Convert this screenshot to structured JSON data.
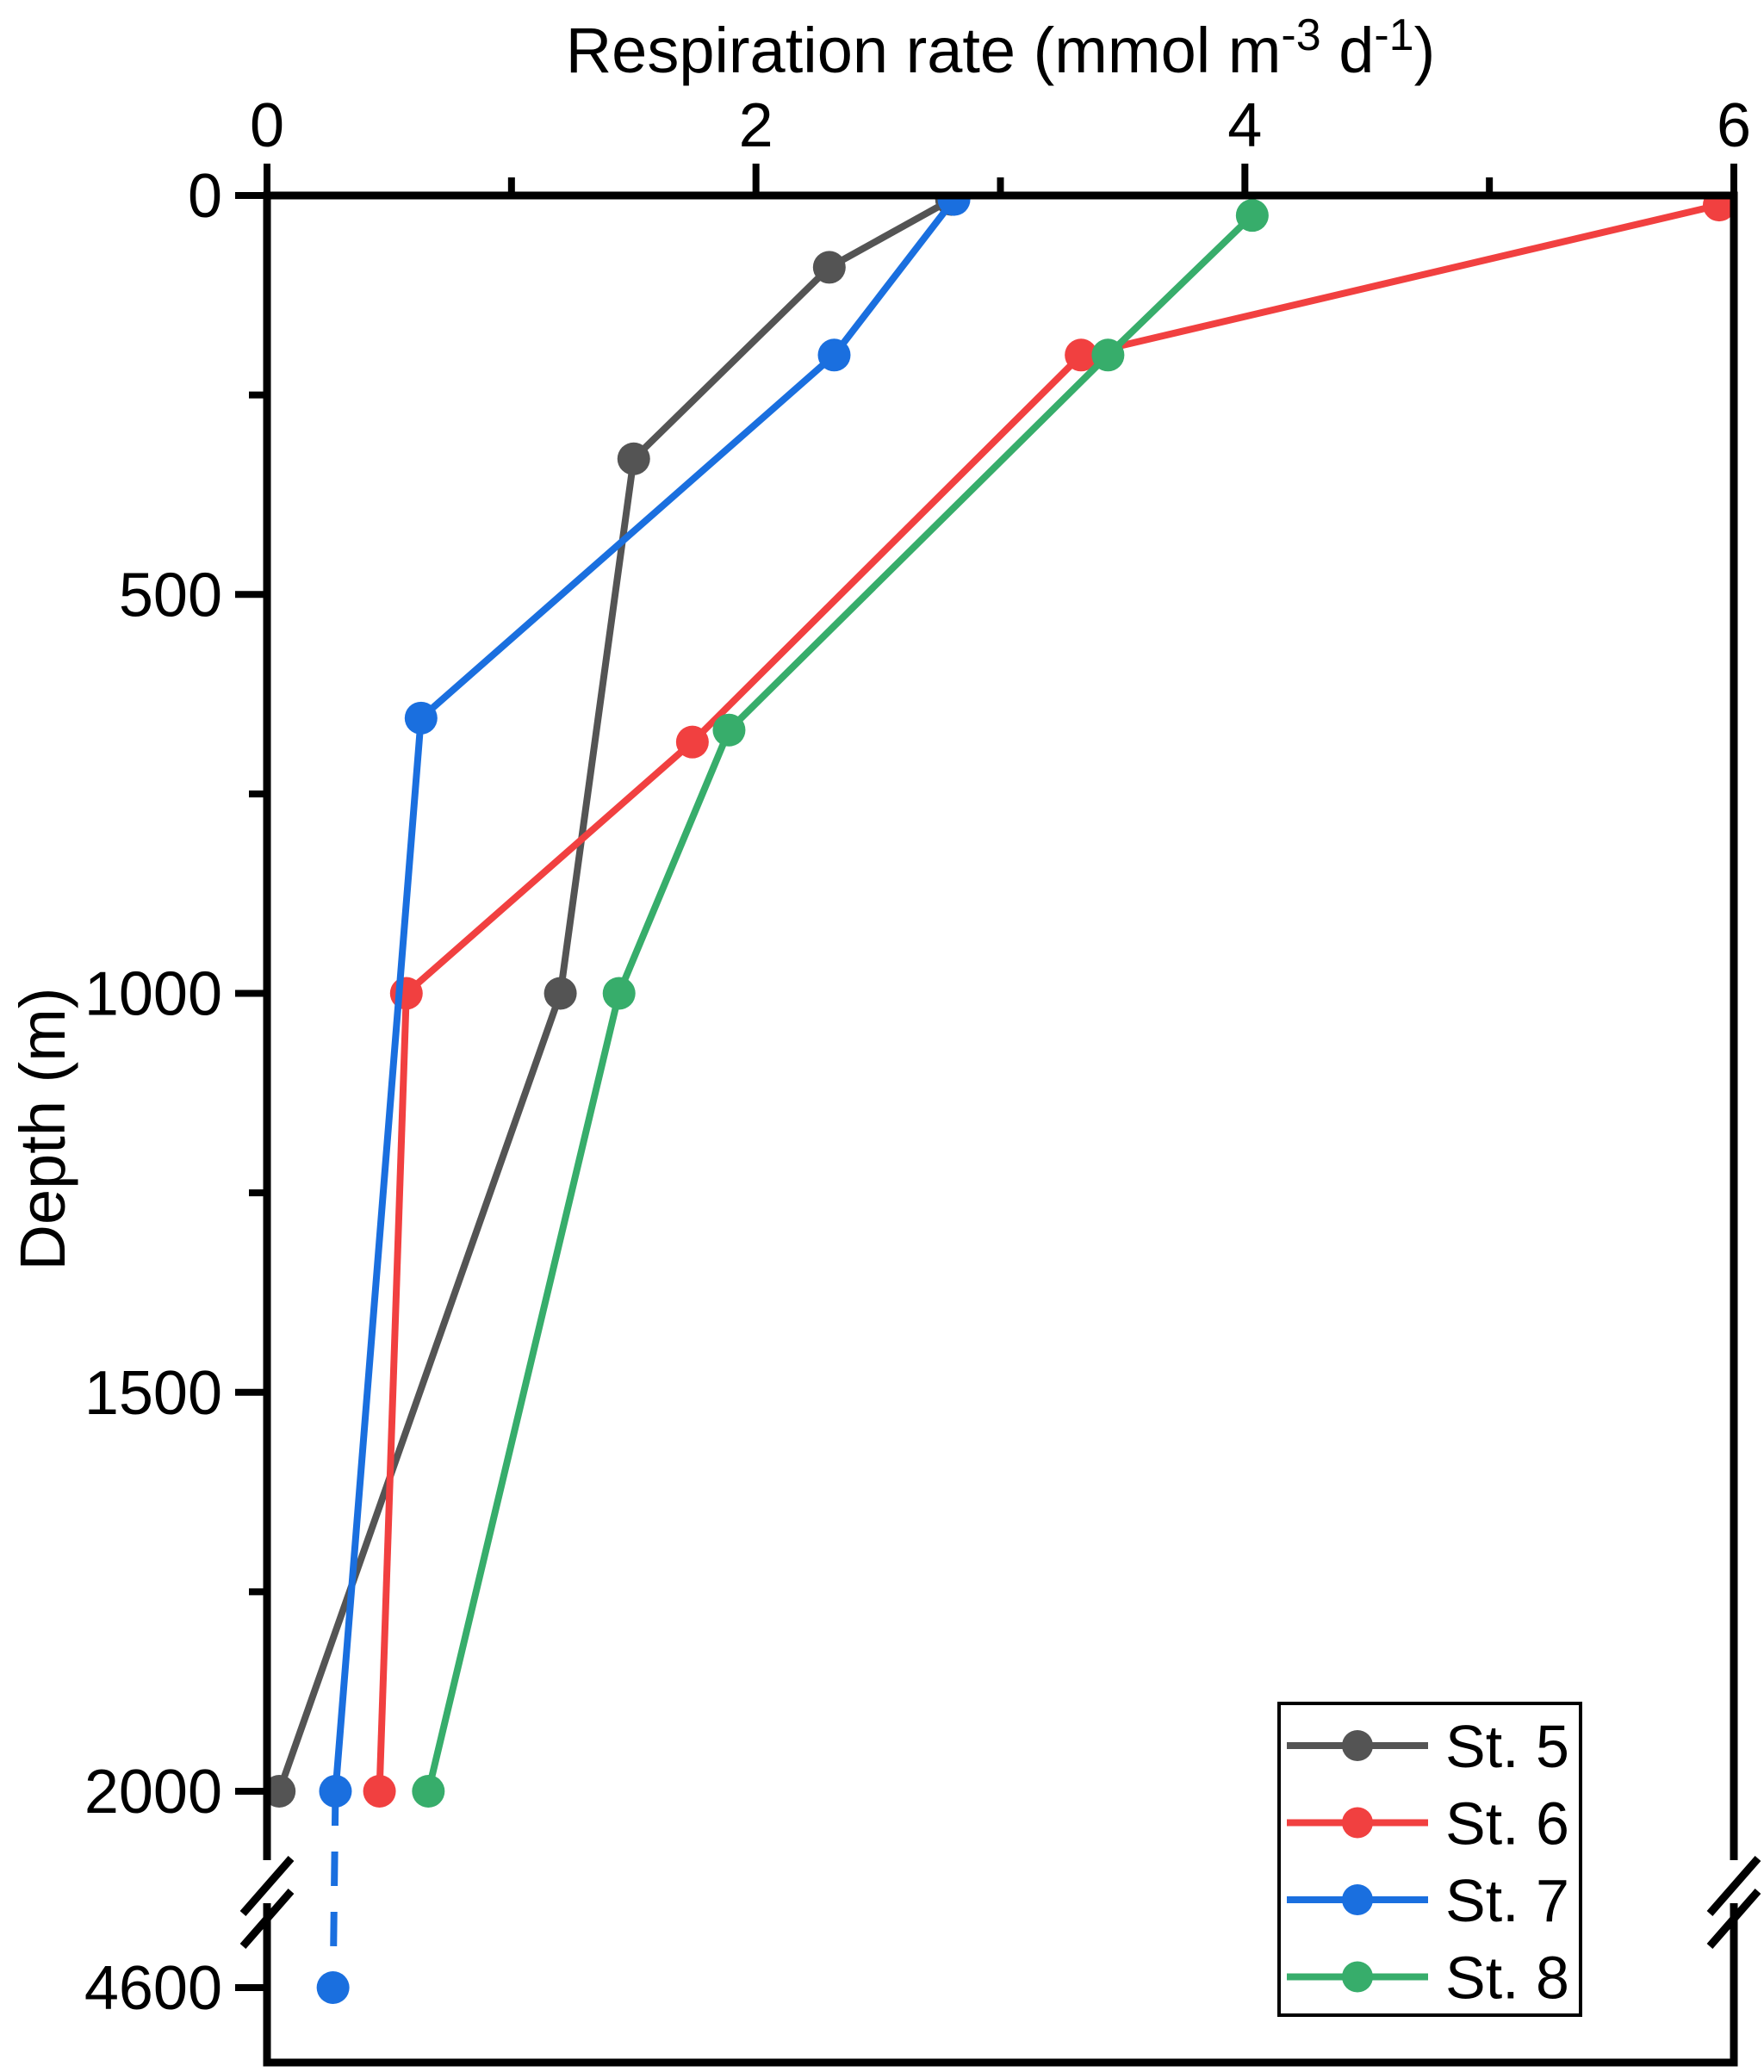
{
  "chart_data": {
    "type": "line",
    "title": "",
    "xlabel": "Respiration rate (mmol m⁻³ d⁻¹)",
    "xlabel_parts": [
      {
        "t": "Respiration rate (mmol m"
      },
      {
        "t": "-3",
        "sup": true
      },
      {
        "t": " d",
        "sup": false
      },
      {
        "t": "-1",
        "sup": true
      },
      {
        "t": ")",
        "sup": false
      }
    ],
    "ylabel": "Depth (m)",
    "x_axis": {
      "side": "top",
      "min": 0,
      "max": 6,
      "major_ticks": [
        0,
        2,
        4,
        6
      ],
      "minor_ticks": [
        1,
        3,
        5
      ]
    },
    "y_axis": {
      "side": "left",
      "unit": "m",
      "inverted": true,
      "min": 0,
      "major_ticks": [
        0,
        500,
        1000,
        1500,
        2000
      ],
      "minor_ticks": [
        250,
        750,
        1250,
        1750
      ],
      "axis_break": {
        "between": [
          2000,
          4600
        ]
      },
      "post_break_major_tick": 4600
    },
    "grid": false,
    "frame": true,
    "background_color": "#FFFFFF",
    "frame_color": "#000000",
    "legend": {
      "position": "bottom-right",
      "border": true,
      "entries": [
        "St. 5",
        "St. 6",
        "St. 7",
        "St. 8"
      ]
    },
    "series": [
      {
        "name": "St. 5",
        "color": "#545454",
        "marker": "circle",
        "line_style": "solid",
        "points_rate_depth": [
          [
            2.8,
            5
          ],
          [
            2.3,
            90
          ],
          [
            1.5,
            330
          ],
          [
            1.2,
            1000
          ],
          [
            0.05,
            2000
          ]
        ]
      },
      {
        "name": "St. 6",
        "color": "#F14040",
        "marker": "circle",
        "line_style": "solid",
        "points_rate_depth": [
          [
            5.94,
            12
          ],
          [
            3.33,
            200
          ],
          [
            1.74,
            685
          ],
          [
            0.57,
            1000
          ],
          [
            0.46,
            2000
          ]
        ]
      },
      {
        "name": "St. 7",
        "color": "#1A6FDF",
        "marker": "circle",
        "line_style": "solid with dashed tail",
        "dashed_from_index": 3,
        "points_rate_depth": [
          [
            2.81,
            5
          ],
          [
            2.32,
            200
          ],
          [
            0.63,
            655
          ],
          [
            0.28,
            2000
          ],
          [
            0.27,
            4600
          ]
        ]
      },
      {
        "name": "St. 8",
        "color": "#37AD6B",
        "marker": "circle",
        "line_style": "solid",
        "points_rate_depth": [
          [
            4.03,
            25
          ],
          [
            3.44,
            200
          ],
          [
            1.89,
            670
          ],
          [
            1.44,
            1000
          ],
          [
            0.66,
            2000
          ]
        ]
      }
    ]
  }
}
